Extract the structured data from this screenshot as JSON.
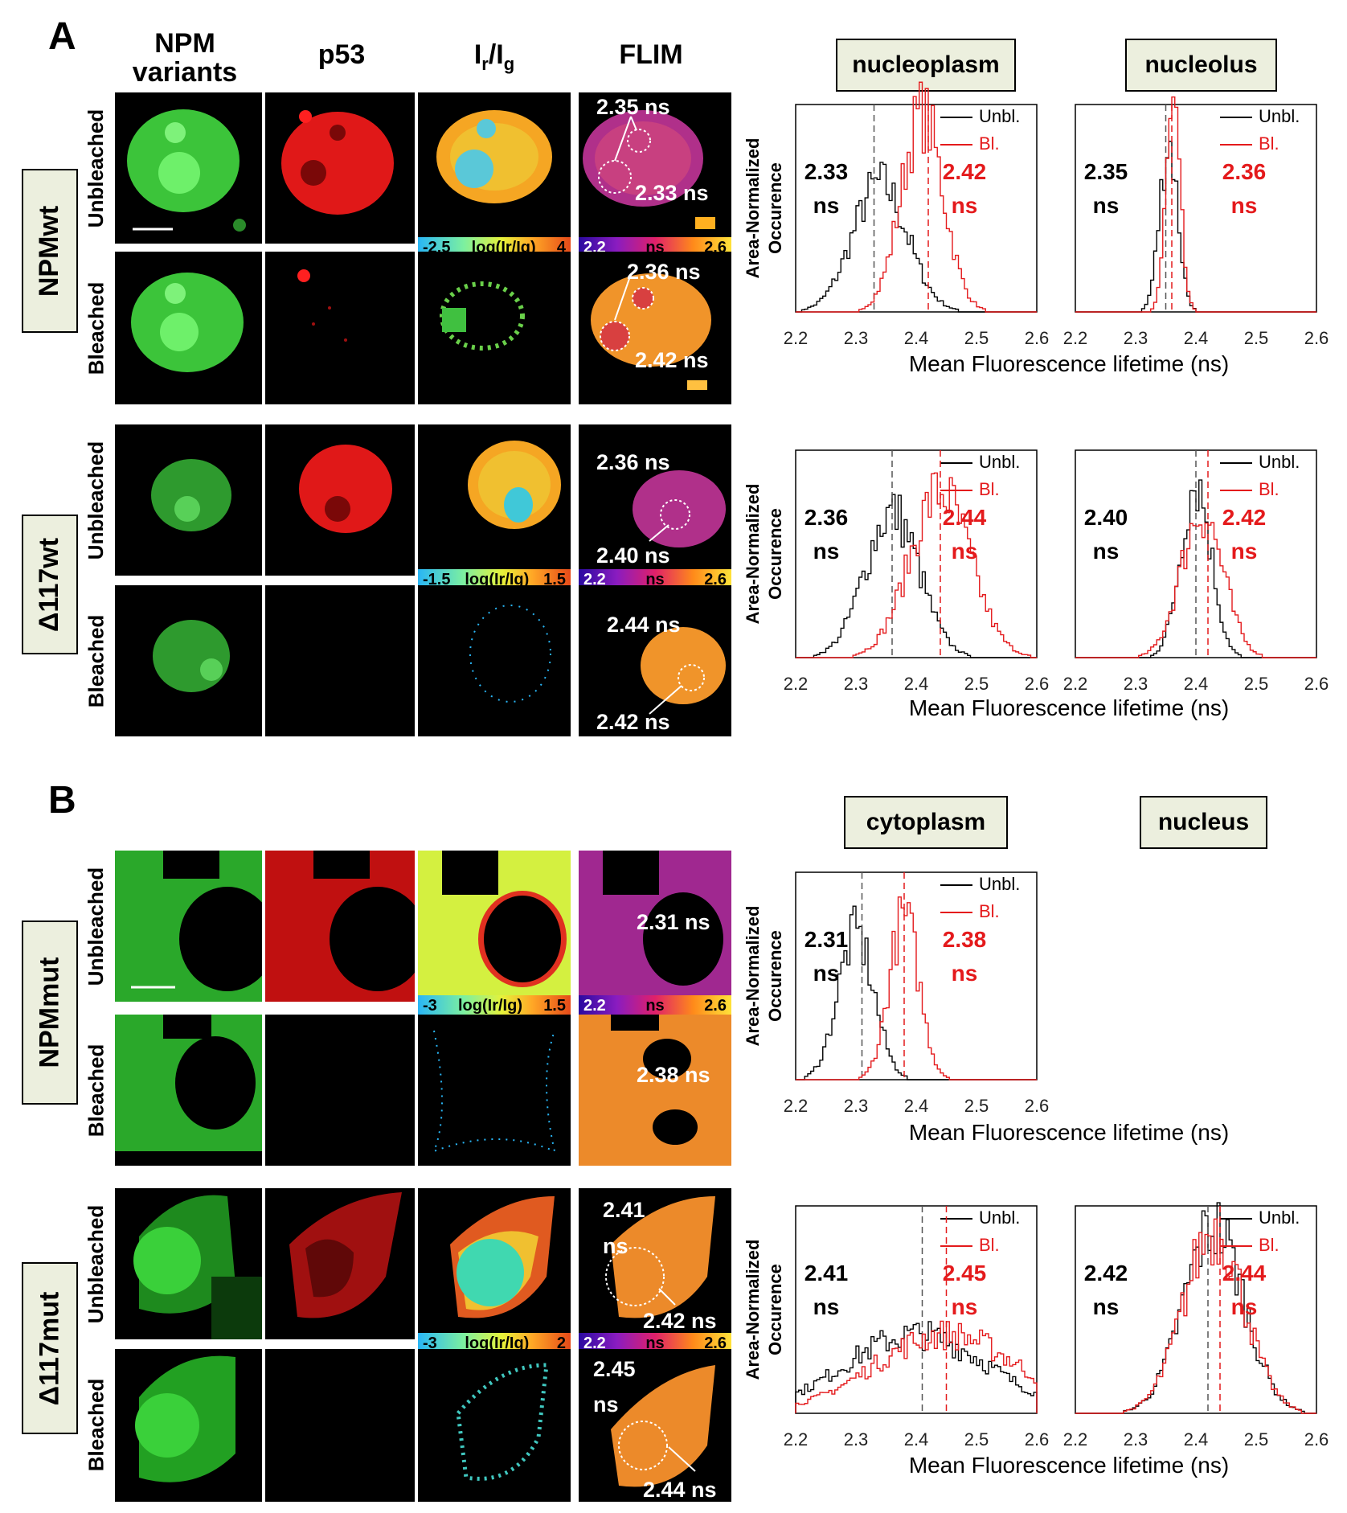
{
  "panels": {
    "a": "A",
    "b": "B"
  },
  "columns": {
    "npm": "NPM\nvariants",
    "p53": "p53",
    "ratio_base": "I",
    "ratio_r": "r",
    "ratio_slash": "/I",
    "ratio_g": "g",
    "flim": "FLIM"
  },
  "groups": {
    "npmwt": "NPMwt",
    "d117wt": "Δ117wt",
    "npmmut": "NPMmut",
    "d117mut": "Δ117mut"
  },
  "rows": {
    "unbleached": "Unbleached",
    "bleached": "Bleached"
  },
  "regions": {
    "nucleoplasm": "nucleoplasm",
    "nucleolus": "nucleolus",
    "cytoplasm": "cytoplasm",
    "nucleus": "nucleus"
  },
  "colorbars": {
    "npmwt": {
      "ratio_min": "-2.5",
      "ratio_label": "log(Ir/Ig)",
      "ratio_max": "4",
      "flim_min": "2.2",
      "flim_label": "ns",
      "flim_max": "2.6"
    },
    "d117wt": {
      "ratio_min": "-1.5",
      "ratio_label": "log(Ir/Ig)",
      "ratio_max": "1.5",
      "flim_min": "2.2",
      "flim_label": "ns",
      "flim_max": "2.6"
    },
    "npmmut": {
      "ratio_min": "-3",
      "ratio_label": "log(Ir/Ig)",
      "ratio_max": "1.5",
      "flim_min": "2.2",
      "flim_label": "ns",
      "flim_max": "2.6"
    },
    "d117mut": {
      "ratio_min": "-3",
      "ratio_label": "log(Ir/Ig)",
      "ratio_max": "2",
      "flim_min": "2.2",
      "flim_label": "ns",
      "flim_max": "2.6"
    }
  },
  "flim_labels": {
    "npmwt_unbl_a": "2.35 ns",
    "npmwt_unbl_b": "2.33 ns",
    "npmwt_bl_a": "2.36 ns",
    "npmwt_bl_b": "2.42 ns",
    "d117wt_unbl_a": "2.36 ns",
    "d117wt_unbl_b": "2.40 ns",
    "d117wt_bl_a": "2.44 ns",
    "d117wt_bl_b": "2.42 ns",
    "npmmut_unbl": "2.31 ns",
    "npmmut_bl": "2.38 ns",
    "d117mut_unbl_a": "2.41",
    "d117mut_unbl_a2": "ns",
    "d117mut_unbl_b": "2.42 ns",
    "d117mut_bl_a": "2.45",
    "d117mut_bl_a2": "ns",
    "d117mut_bl_b": "2.44 ns"
  },
  "axis": {
    "xlabel": "Mean Fluorescence lifetime (ns)",
    "ylabel1": "Area-Normalized",
    "ylabel2": "Occurence"
  },
  "chart_data": [
    {
      "type": "line",
      "id": "c1",
      "title": "NPMwt nucleoplasm",
      "x": [
        2.2,
        2.3,
        2.4,
        2.5,
        2.6
      ],
      "xlim": [
        2.2,
        2.6
      ],
      "series": [
        {
          "name": "Unbl.",
          "color": "#000000",
          "mean": 2.33,
          "peak": 2.34,
          "width": 0.045,
          "height": 0.62
        },
        {
          "name": "Bl.",
          "color": "#e41a1c",
          "mean": 2.42,
          "peak": 2.41,
          "width": 0.035,
          "height": 0.95
        }
      ],
      "mean_labels": [
        "2.33",
        "ns",
        "2.42",
        "ns"
      ]
    },
    {
      "type": "line",
      "id": "c2",
      "title": "NPMwt nucleolus",
      "x": [
        2.2,
        2.3,
        2.4,
        2.5,
        2.6
      ],
      "xlim": [
        2.2,
        2.6
      ],
      "series": [
        {
          "name": "Unbl.",
          "color": "#000000",
          "mean": 2.35,
          "peak": 2.355,
          "width": 0.015,
          "height": 0.82
        },
        {
          "name": "Bl.",
          "color": "#e41a1c",
          "mean": 2.36,
          "peak": 2.362,
          "width": 0.012,
          "height": 0.95
        }
      ],
      "mean_labels": [
        "2.35",
        "ns",
        "2.36",
        "ns"
      ]
    },
    {
      "type": "line",
      "id": "c3",
      "title": "Δ117wt nucleoplasm",
      "x": [
        2.2,
        2.3,
        2.4,
        2.5,
        2.6
      ],
      "xlim": [
        2.2,
        2.6
      ],
      "series": [
        {
          "name": "Unbl.",
          "color": "#000000",
          "mean": 2.36,
          "peak": 2.36,
          "width": 0.045,
          "height": 0.7
        },
        {
          "name": "Bl.",
          "color": "#e41a1c",
          "mean": 2.44,
          "peak": 2.44,
          "width": 0.05,
          "height": 0.8
        }
      ],
      "mean_labels": [
        "2.36",
        "ns",
        "2.44",
        "ns"
      ]
    },
    {
      "type": "line",
      "id": "c4",
      "title": "Δ117wt nucleolus",
      "x": [
        2.2,
        2.3,
        2.4,
        2.5,
        2.6
      ],
      "xlim": [
        2.2,
        2.6
      ],
      "series": [
        {
          "name": "Unbl.",
          "color": "#000000",
          "mean": 2.4,
          "peak": 2.4,
          "width": 0.025,
          "height": 0.85
        },
        {
          "name": "Bl.",
          "color": "#e41a1c",
          "mean": 2.42,
          "peak": 2.41,
          "width": 0.035,
          "height": 0.7
        }
      ],
      "mean_labels": [
        "2.40",
        "ns",
        "2.42",
        "ns"
      ]
    },
    {
      "type": "line",
      "id": "c5",
      "title": "NPMmut cytoplasm",
      "x": [
        2.2,
        2.3,
        2.4,
        2.5,
        2.6
      ],
      "xlim": [
        2.2,
        2.6
      ],
      "series": [
        {
          "name": "Unbl.",
          "color": "#000000",
          "mean": 2.31,
          "peak": 2.3,
          "width": 0.03,
          "height": 0.7
        },
        {
          "name": "Bl.",
          "color": "#e41a1c",
          "mean": 2.38,
          "peak": 2.38,
          "width": 0.025,
          "height": 0.78
        }
      ],
      "mean_labels": [
        "2.31",
        "ns",
        "2.38",
        "ns"
      ]
    },
    {
      "type": "line",
      "id": "c6",
      "title": "Δ117mut cytoplasm",
      "x": [
        2.2,
        2.3,
        2.4,
        2.5,
        2.6
      ],
      "xlim": [
        2.2,
        2.6
      ],
      "series": [
        {
          "name": "Unbl.",
          "color": "#000000",
          "mean": 2.41,
          "peak": 2.4,
          "width": 0.12,
          "height": 0.38
        },
        {
          "name": "Bl.",
          "color": "#e41a1c",
          "mean": 2.45,
          "peak": 2.45,
          "width": 0.12,
          "height": 0.38
        }
      ],
      "mean_labels": [
        "2.41",
        "ns",
        "2.45",
        "ns"
      ]
    },
    {
      "type": "line",
      "id": "c7",
      "title": "Δ117mut nucleus",
      "x": [
        2.2,
        2.3,
        2.4,
        2.5,
        2.6
      ],
      "xlim": [
        2.2,
        2.6
      ],
      "series": [
        {
          "name": "Unbl.",
          "color": "#000000",
          "mean": 2.42,
          "peak": 2.43,
          "width": 0.05,
          "height": 0.9
        },
        {
          "name": "Bl.",
          "color": "#e41a1c",
          "mean": 2.44,
          "peak": 2.43,
          "width": 0.05,
          "height": 0.88
        }
      ],
      "mean_labels": [
        "2.42",
        "ns",
        "2.44",
        "ns"
      ]
    }
  ]
}
